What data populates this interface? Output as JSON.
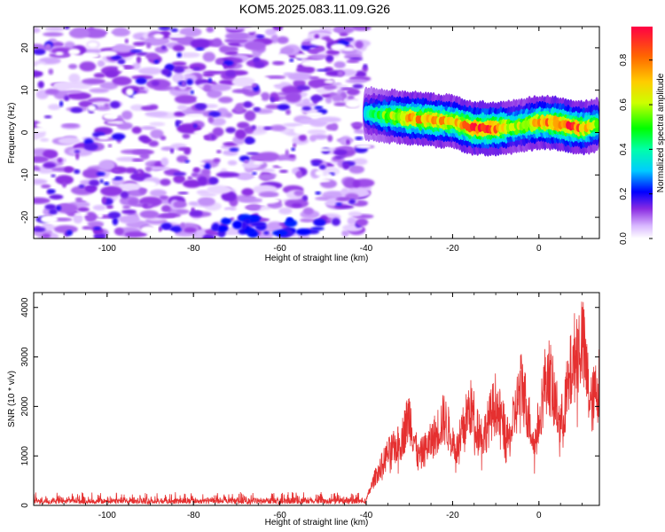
{
  "title": "KOM5.2025.083.11.09.G26",
  "chart_data": [
    {
      "type": "heatmap",
      "xlabel": "Height of straight line (km)",
      "ylabel": "Frequency (Hz)",
      "xlim": [
        -117,
        14
      ],
      "ylim": [
        -25,
        25
      ],
      "xticks": [
        "-100",
        "-80",
        "-60",
        "-40",
        "-20",
        "0"
      ],
      "xtick_values": [
        -100,
        -80,
        -60,
        -40,
        -20,
        0
      ],
      "yticks": [
        "-20",
        "-10",
        "0",
        "10",
        "20"
      ],
      "ytick_values": [
        -20,
        -10,
        0,
        10,
        20
      ],
      "colorbar": {
        "label": "Normalized spectral amplitude",
        "ticks": [
          "0.0",
          "0.2",
          "0.4",
          "0.6",
          "0.8"
        ],
        "tick_values": [
          0.0,
          0.2,
          0.4,
          0.6,
          0.8
        ],
        "range": [
          0,
          0.95
        ],
        "colormap": "rainbow"
      },
      "noise_region": {
        "x": [
          -117,
          -40
        ],
        "y": [
          -25,
          25
        ],
        "amplitude_range": [
          0.0,
          0.25
        ]
      },
      "signal_ridge": {
        "x": [
          -40,
          -36,
          -30,
          -25,
          -20,
          -15,
          -10,
          -5,
          0,
          5,
          10,
          14
        ],
        "y": [
          4.5,
          4,
          3.5,
          3,
          2.5,
          1,
          1,
          1.5,
          2.5,
          2,
          1,
          2
        ],
        "peak_amplitude": [
          0.35,
          0.55,
          0.75,
          0.8,
          0.7,
          0.9,
          0.85,
          0.6,
          0.75,
          0.9,
          0.8,
          0.6
        ]
      }
    },
    {
      "type": "line",
      "xlabel": "Height of straight line (km)",
      "ylabel": "SNR (10 * v/v)",
      "xlim": [
        -117,
        14
      ],
      "ylim": [
        0,
        4300
      ],
      "xticks": [
        "-100",
        "-80",
        "-60",
        "-40",
        "-20",
        "0"
      ],
      "xtick_values": [
        -100,
        -80,
        -60,
        -40,
        -20,
        0
      ],
      "yticks": [
        "0",
        "1000",
        "2000",
        "3000",
        "4000"
      ],
      "ytick_values": [
        0,
        1000,
        2000,
        3000,
        4000
      ],
      "line_color": "#e53030",
      "envelope": {
        "x": [
          -117,
          -45,
          -40,
          -38,
          -35,
          -32,
          -30,
          -28,
          -25,
          -22,
          -19,
          -16,
          -13,
          -10,
          -7,
          -4,
          -1,
          2,
          5,
          8,
          10,
          12,
          14
        ],
        "y": [
          150,
          150,
          140,
          700,
          1300,
          1600,
          2300,
          1200,
          1600,
          2200,
          1400,
          2500,
          1700,
          2600,
          1600,
          3100,
          1500,
          3500,
          2000,
          3700,
          4200,
          2500,
          3100
        ]
      }
    }
  ]
}
